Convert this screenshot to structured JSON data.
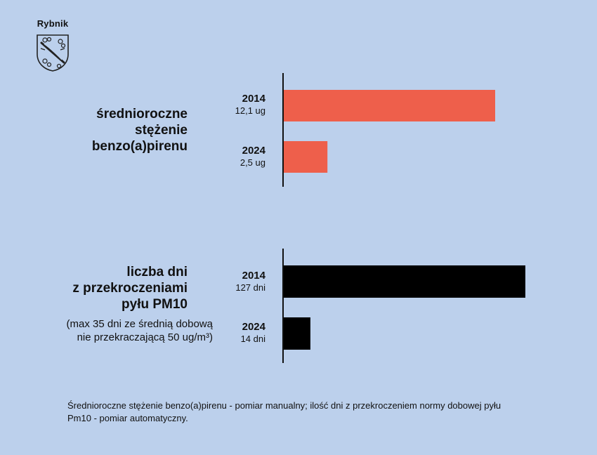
{
  "logo": {
    "title": "Rybnik",
    "icon": "coat-of-arms-icon"
  },
  "colors": {
    "background": "#bcd0ec",
    "series1": "#ee5f4b",
    "series2": "#000000"
  },
  "chart_data": [
    {
      "type": "bar",
      "orientation": "horizontal",
      "title_lines": [
        "średnioroczne",
        "stężenie",
        "benzo(a)pirenu"
      ],
      "categories": [
        "2014",
        "2024"
      ],
      "values": [
        12.1,
        2.5
      ],
      "value_labels": [
        "12,1 ug",
        "2,5 ug"
      ],
      "unit": "ug",
      "color": "#ee5f4b"
    },
    {
      "type": "bar",
      "orientation": "horizontal",
      "title_lines": [
        "liczba dni",
        "z przekroczeniami",
        "pyłu PM10"
      ],
      "subtitle_lines": [
        "(max 35 dni ze średnią dobową",
        "nie przekraczającą 50 ug/m³)"
      ],
      "categories": [
        "2014",
        "2024"
      ],
      "values": [
        127,
        14
      ],
      "value_labels": [
        "127 dni",
        "14 dni"
      ],
      "unit": "dni",
      "color": "#000000"
    }
  ],
  "footnote": "Średnioroczne stężenie benzo(a)pirenu - pomiar manualny; ilość dni z przekroczeniem normy dobowej pyłu Pm10 - pomiar automatyczny."
}
